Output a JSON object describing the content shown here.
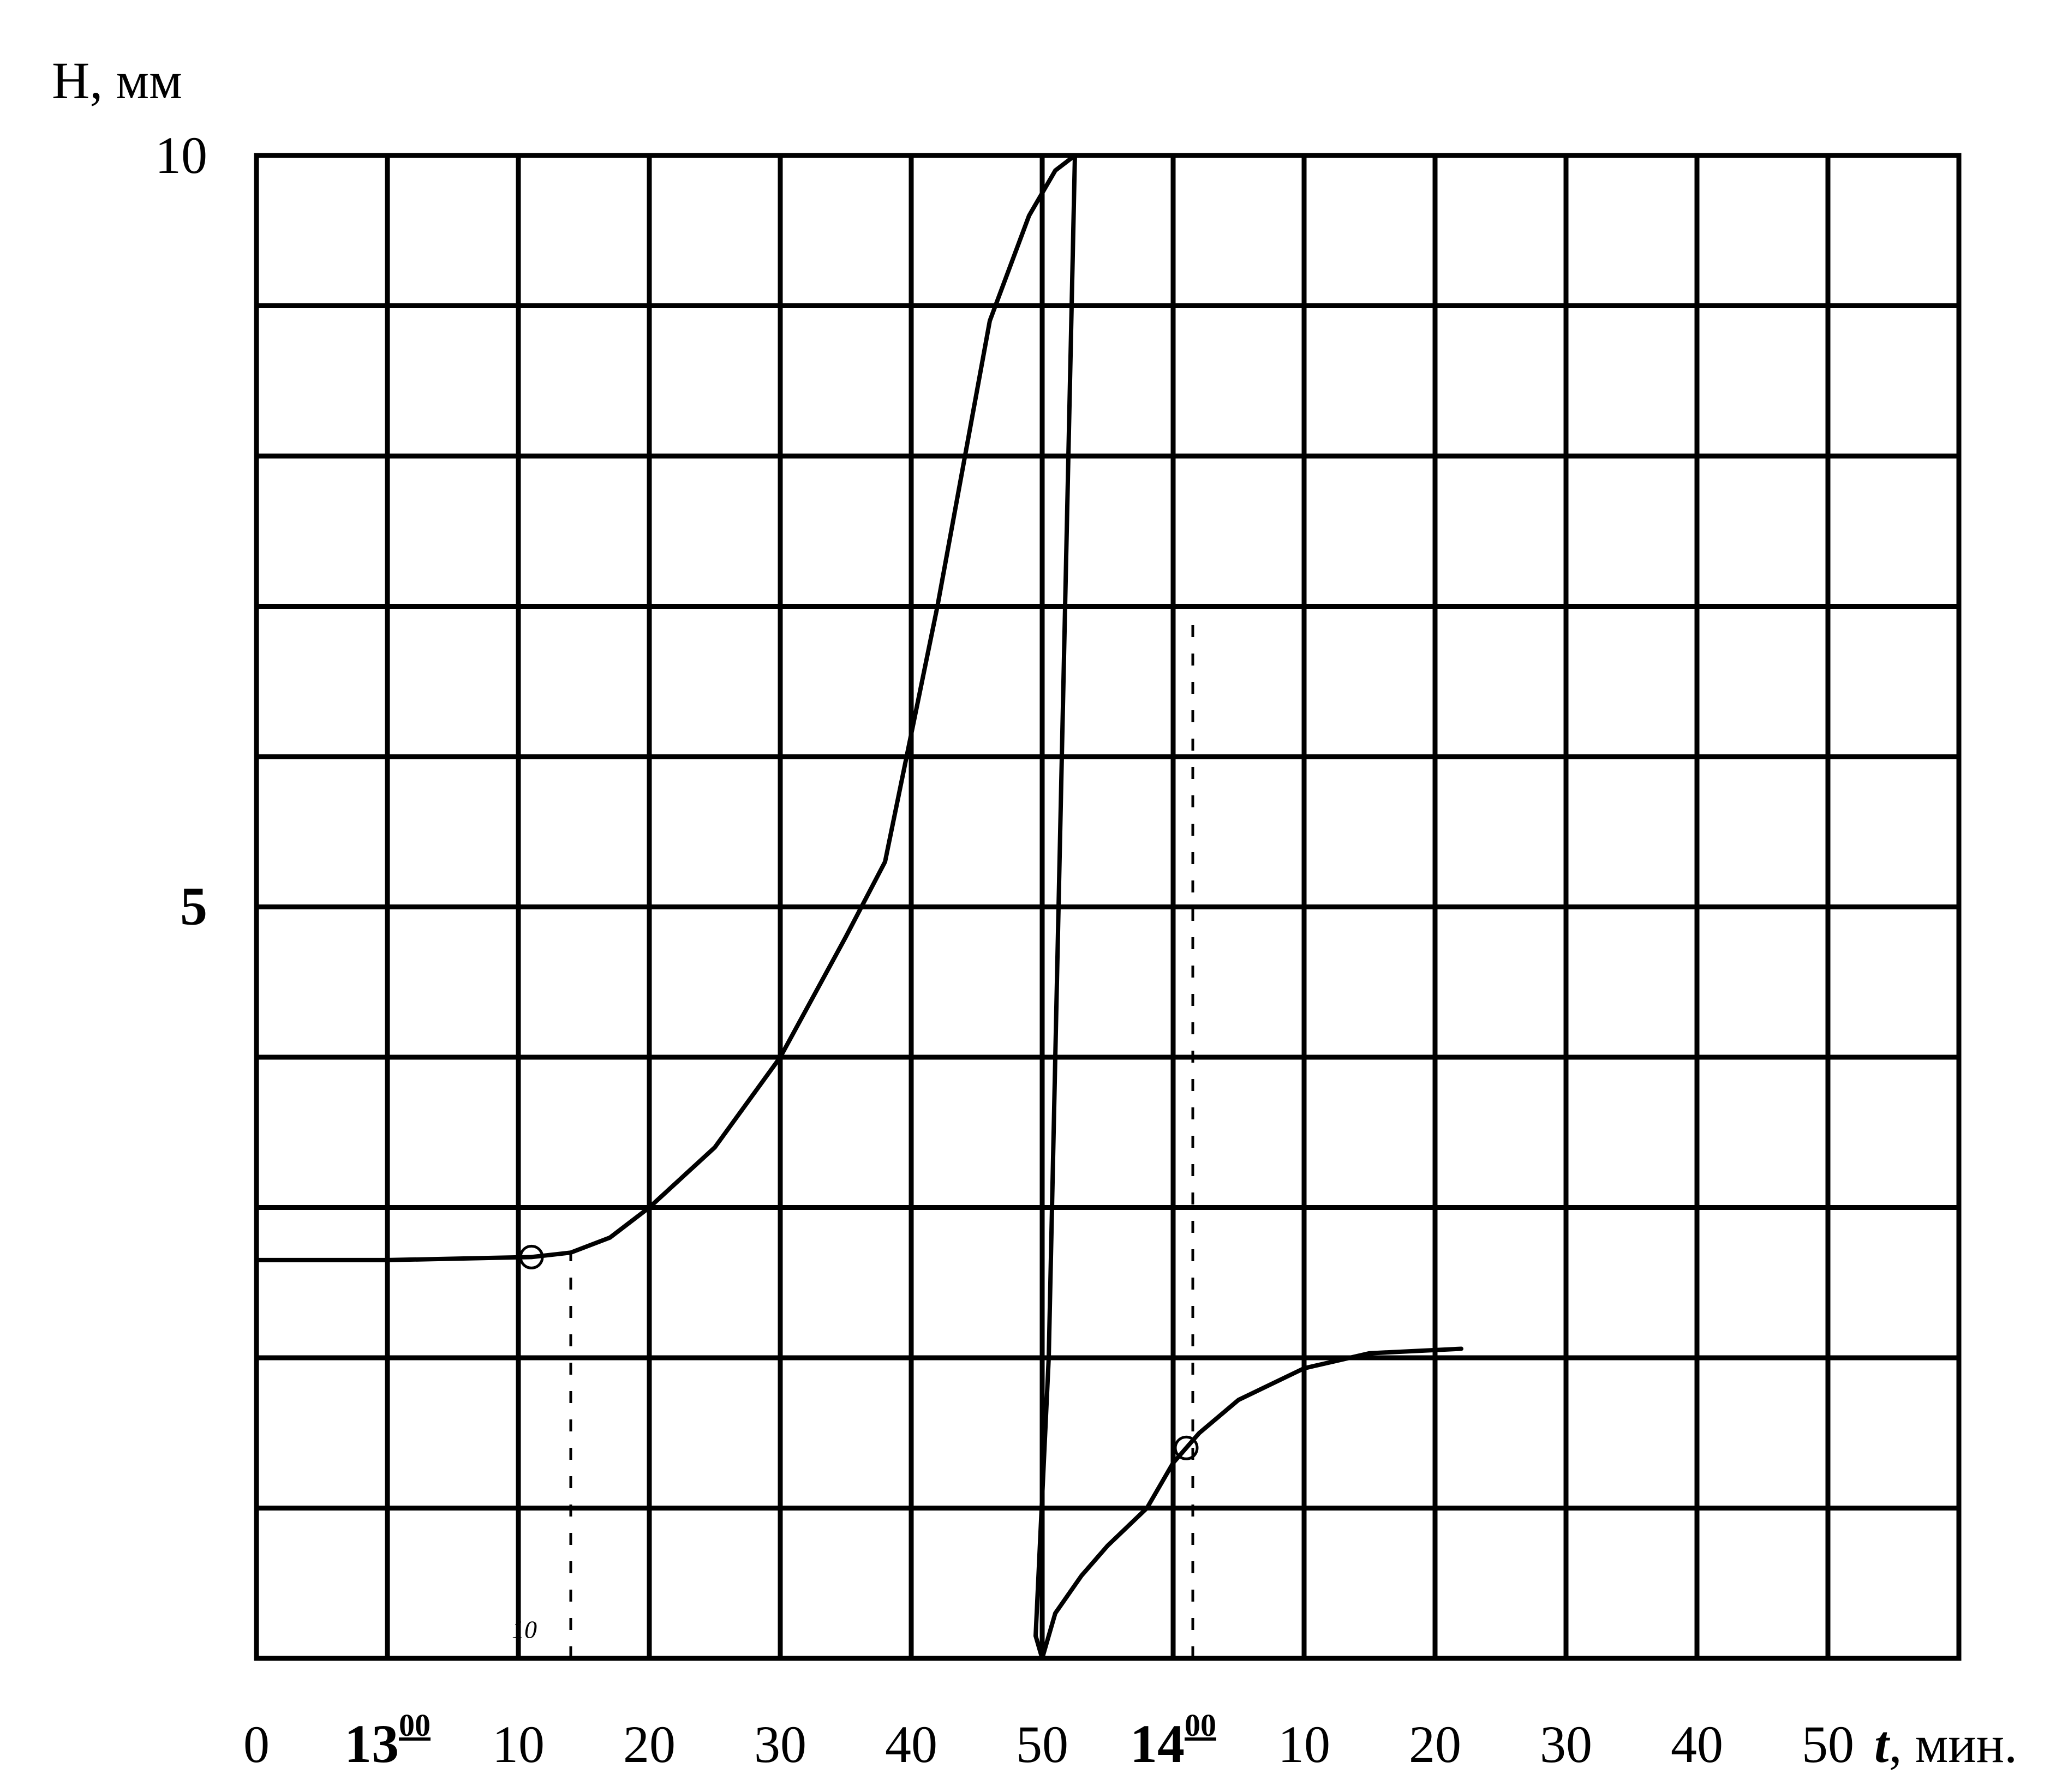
{
  "chart_data": {
    "type": "line",
    "title": "",
    "ylabel": "H, мм",
    "xlabel_italic": "t",
    "xlabel_rest": ", мин.",
    "ylim": [
      0,
      10
    ],
    "xlim": [
      0,
      130
    ],
    "grid": true,
    "y_ticks": [
      {
        "value": 10,
        "label": "10",
        "bold": false
      },
      {
        "value": 5,
        "label": "5",
        "bold": true
      }
    ],
    "y_grid": [
      0,
      1,
      2,
      3,
      4,
      5,
      6,
      7,
      8,
      9,
      10
    ],
    "x_grid": [
      0,
      10,
      20,
      30,
      40,
      50,
      60,
      70,
      80,
      90,
      100,
      110,
      120,
      130
    ],
    "x_ticks": [
      {
        "value": 0,
        "label": "0",
        "sup": "",
        "bold": false
      },
      {
        "value": 10,
        "label": "13",
        "sup": "00",
        "bold": true
      },
      {
        "value": 20,
        "label": "10",
        "sup": "",
        "bold": false
      },
      {
        "value": 30,
        "label": "20",
        "sup": "",
        "bold": false
      },
      {
        "value": 40,
        "label": "30",
        "sup": "",
        "bold": false
      },
      {
        "value": 50,
        "label": "40",
        "sup": "",
        "bold": false
      },
      {
        "value": 60,
        "label": "50",
        "sup": "",
        "bold": false
      },
      {
        "value": 70,
        "label": "14",
        "sup": "00",
        "bold": true
      },
      {
        "value": 80,
        "label": "10",
        "sup": "",
        "bold": false
      },
      {
        "value": 90,
        "label": "20",
        "sup": "",
        "bold": false
      },
      {
        "value": 100,
        "label": "30",
        "sup": "",
        "bold": false
      },
      {
        "value": 110,
        "label": "40",
        "sup": "",
        "bold": false
      },
      {
        "value": 120,
        "label": "50",
        "sup": "",
        "bold": false
      }
    ],
    "series": [
      {
        "x": [
          0,
          10,
          21,
          24,
          27,
          30,
          35,
          40,
          45,
          48,
          52,
          56,
          59,
          61,
          62.5
        ],
        "y": [
          2.65,
          2.65,
          2.67,
          2.7,
          2.8,
          3.0,
          3.4,
          4.0,
          4.8,
          5.3,
          7.0,
          8.9,
          9.6,
          9.9,
          10
        ]
      },
      {
        "x": [
          62.5,
          61.5,
          60.5,
          59.5
        ],
        "y": [
          10,
          6.0,
          2.0,
          0.15
        ]
      },
      {
        "x": [
          59.5,
          60,
          61,
          63,
          65,
          68,
          70,
          72,
          75,
          80,
          85,
          92
        ],
        "y": [
          0.15,
          0.0,
          0.3,
          0.55,
          0.75,
          1.0,
          1.3,
          1.5,
          1.72,
          1.93,
          2.03,
          2.06
        ]
      }
    ],
    "markers": [
      {
        "x": 21,
        "y": 2.67
      },
      {
        "x": 71,
        "y": 1.4
      }
    ],
    "dashed_verticals": [
      {
        "x": 24,
        "y_from": 0,
        "y_to": 2.7
      },
      {
        "x": 71.5,
        "y_from": 0,
        "y_to": 7.0
      }
    ],
    "annotations": [
      {
        "x": 19.5,
        "y": 0.1,
        "text": "10"
      }
    ]
  }
}
